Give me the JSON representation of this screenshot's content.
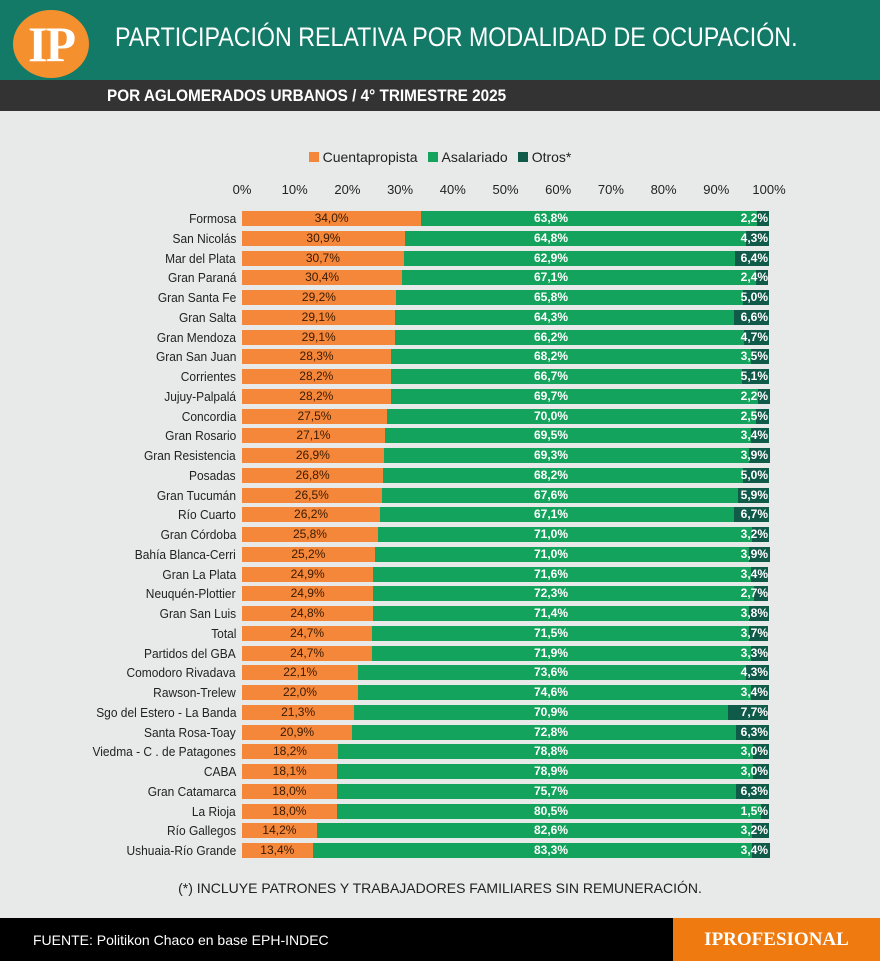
{
  "header": {
    "logo": "IP",
    "title": "PARTICIPACIÓN RELATIVA POR MODALIDAD DE OCUPACIÓN.",
    "subtitle": "POR AGLOMERADOS URBANOS / 4° TRIMESTRE 2025"
  },
  "footnote": "(*) INCLUYE PATRONES Y TRABAJADORES FAMILIARES SIN REMUNERACIÓN.",
  "footer": {
    "source": "FUENTE: Politikon Chaco en base EPH-INDEC",
    "brand": "IPROFESIONAL"
  },
  "colors": {
    "Cuentapropista": "#f5873a",
    "Asalariado": "#14a35c",
    "Otros*": "#0f5a48"
  },
  "chart_data": {
    "type": "bar",
    "orientation": "horizontal",
    "stacked": true,
    "xlim": [
      0,
      100
    ],
    "ticks": [
      "0%",
      "10%",
      "20%",
      "30%",
      "40%",
      "50%",
      "60%",
      "70%",
      "80%",
      "90%",
      "100%"
    ],
    "legend_position": "top",
    "categories": [
      "Formosa",
      "San Nicolás",
      "Mar del Plata",
      "Gran Paraná",
      "Gran Santa Fe",
      "Gran Salta",
      "Gran Mendoza",
      "Gran San Juan",
      "Corrientes",
      "Jujuy-Palpalá",
      "Concordia",
      "Gran Rosario",
      "Gran Resistencia",
      "Posadas",
      "Gran Tucumán",
      "Río Cuarto",
      "Gran Córdoba",
      "Bahía Blanca-Cerri",
      "Gran La Plata",
      "Neuquén-Plottier",
      "Gran San Luis",
      "Total",
      "Partidos del GBA",
      "Comodoro Rivadava",
      "Rawson-Trelew",
      "Sgo del Estero - La Banda",
      "Santa Rosa-Toay",
      "Viedma - C . de Patagones",
      "CABA",
      "Gran Catamarca",
      "La Rioja",
      "Río Gallegos",
      "Ushuaia-Río Grande"
    ],
    "series": [
      {
        "name": "Cuentapropista",
        "values": [
          34.0,
          30.9,
          30.7,
          30.4,
          29.2,
          29.1,
          29.1,
          28.3,
          28.2,
          28.2,
          27.5,
          27.1,
          26.9,
          26.8,
          26.5,
          26.2,
          25.8,
          25.2,
          24.9,
          24.9,
          24.8,
          24.7,
          24.7,
          22.1,
          22.0,
          21.3,
          20.9,
          18.2,
          18.1,
          18.0,
          18.0,
          14.2,
          13.4
        ]
      },
      {
        "name": "Asalariado",
        "values": [
          63.8,
          64.8,
          62.9,
          67.1,
          65.8,
          64.3,
          66.2,
          68.2,
          66.7,
          69.7,
          70.0,
          69.5,
          69.3,
          68.2,
          67.6,
          67.1,
          71.0,
          71.0,
          71.6,
          72.3,
          71.4,
          71.5,
          71.9,
          73.6,
          74.6,
          70.9,
          72.8,
          78.8,
          78.9,
          75.7,
          80.5,
          82.6,
          83.3
        ]
      },
      {
        "name": "Otros*",
        "values": [
          2.2,
          4.3,
          6.4,
          2.4,
          5.0,
          6.6,
          4.7,
          3.5,
          5.1,
          2.2,
          2.5,
          3.4,
          3.9,
          5.0,
          5.9,
          6.7,
          3.2,
          3.9,
          3.4,
          2.7,
          3.8,
          3.7,
          3.3,
          4.3,
          3.4,
          7.7,
          6.3,
          3.0,
          3.0,
          6.3,
          1.5,
          3.2,
          3.4
        ]
      }
    ]
  }
}
